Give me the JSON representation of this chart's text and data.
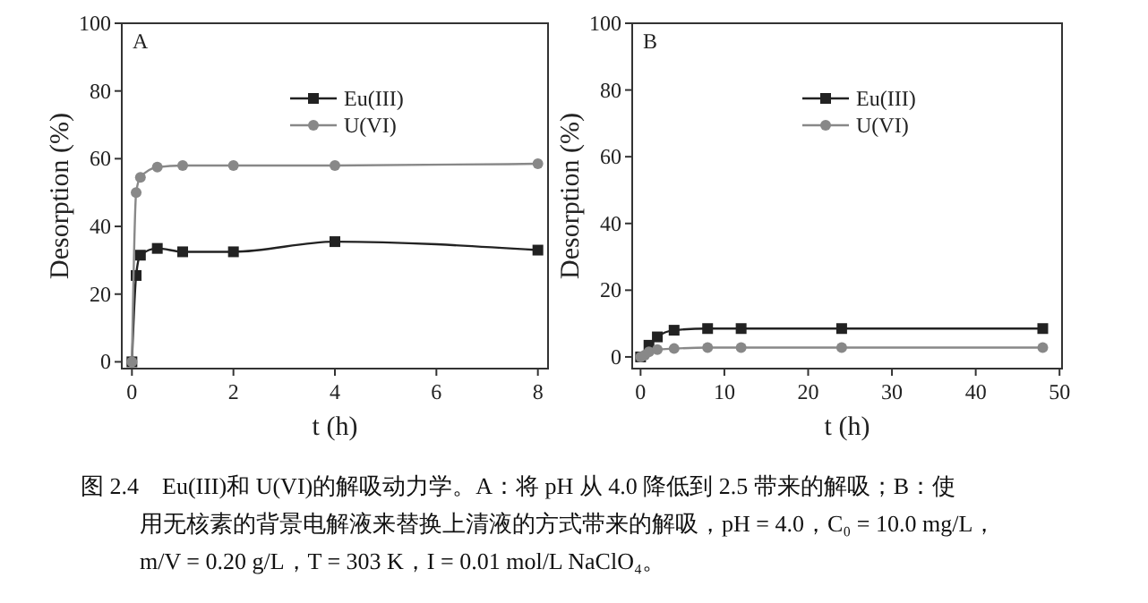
{
  "chart_data": [
    {
      "type": "line",
      "title": "A",
      "xlabel": "t (h)",
      "ylabel": "Desorption (%)",
      "xlim": [
        -0.2,
        8.2
      ],
      "xticks": [
        0,
        2,
        4,
        6,
        8
      ],
      "ylim": [
        -2,
        100
      ],
      "yticks": [
        0,
        20,
        40,
        60,
        80,
        100
      ],
      "legend": "top",
      "series": [
        {
          "name": "Eu(III)",
          "color": "#222222",
          "marker": "square",
          "x": [
            0,
            0.083,
            0.167,
            0.5,
            1,
            2,
            4,
            8
          ],
          "values": [
            0,
            25.5,
            31.5,
            33.5,
            32.5,
            32.5,
            35.5,
            33
          ]
        },
        {
          "name": "U(VI)",
          "color": "#888888",
          "marker": "circle",
          "x": [
            0,
            0.083,
            0.167,
            0.5,
            1,
            2,
            4,
            8
          ],
          "values": [
            0,
            50,
            54.5,
            57.5,
            58,
            58,
            58,
            58.5
          ]
        }
      ]
    },
    {
      "type": "line",
      "title": "B",
      "xlabel": "t (h)",
      "ylabel": "Desorption (%)",
      "xlim": [
        -1,
        50.3
      ],
      "xticks": [
        0,
        10,
        20,
        30,
        40,
        50
      ],
      "ylim": [
        -3.5,
        100
      ],
      "yticks": [
        0,
        20,
        40,
        60,
        80,
        100
      ],
      "legend": "top",
      "series": [
        {
          "name": "Eu(III)",
          "color": "#222222",
          "marker": "square",
          "x": [
            0,
            0.5,
            1,
            2,
            4,
            8,
            12,
            24,
            48
          ],
          "values": [
            0,
            null,
            3.5,
            6,
            8,
            8.5,
            8.5,
            8.5,
            8.5
          ]
        },
        {
          "name": "U(VI)",
          "color": "#888888",
          "marker": "circle",
          "x": [
            0,
            0.5,
            1,
            2,
            4,
            8,
            12,
            24,
            48
          ],
          "values": [
            0,
            0.5,
            1.5,
            2.2,
            2.5,
            2.8,
            2.8,
            2.8,
            2.8
          ]
        }
      ],
      "annotations": [
        "图 2.4　Eu(III)和 U(VI)的解吸动力学。A：将 pH 从 4.0 降低到 2.5 带来的解吸；B：使",
        "用无核素的背景电解液来替换上清液的方式带来的解吸，pH = 4.0，C₀ = 10.0 mg/L，",
        "m/V = 0.20 g/L，T = 303 K，I = 0.01 mol/L NaClO₄。"
      ]
    }
  ]
}
